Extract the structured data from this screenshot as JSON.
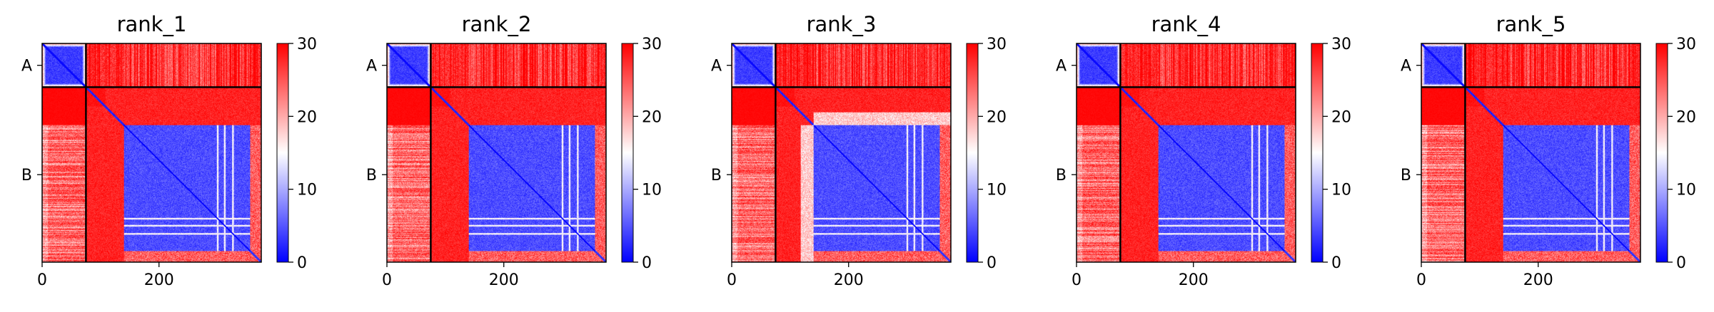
{
  "chart_data": [
    {
      "type": "heatmap",
      "title": "rank_1",
      "x_ticks": [
        0,
        200
      ],
      "y_ticks": [
        "A",
        "B"
      ],
      "colorbar_ticks": [
        0,
        10,
        20,
        30
      ],
      "color_range": [
        0,
        30
      ],
      "colormap": [
        "#0000ff",
        "#ffffff",
        "#ff0000"
      ],
      "n_residues": 375,
      "chain_break": 75,
      "variant": 1
    },
    {
      "type": "heatmap",
      "title": "rank_2",
      "x_ticks": [
        0,
        200
      ],
      "y_ticks": [
        "A",
        "B"
      ],
      "colorbar_ticks": [
        0,
        10,
        20,
        30
      ],
      "color_range": [
        0,
        30
      ],
      "colormap": [
        "#0000ff",
        "#ffffff",
        "#ff0000"
      ],
      "n_residues": 375,
      "chain_break": 75,
      "variant": 2
    },
    {
      "type": "heatmap",
      "title": "rank_3",
      "x_ticks": [
        0,
        200
      ],
      "y_ticks": [
        "A",
        "B"
      ],
      "colorbar_ticks": [
        0,
        10,
        20,
        30
      ],
      "color_range": [
        0,
        30
      ],
      "colormap": [
        "#0000ff",
        "#ffffff",
        "#ff0000"
      ],
      "n_residues": 375,
      "chain_break": 75,
      "variant": 3
    },
    {
      "type": "heatmap",
      "title": "rank_4",
      "x_ticks": [
        0,
        200
      ],
      "y_ticks": [
        "A",
        "B"
      ],
      "colorbar_ticks": [
        0,
        10,
        20,
        30
      ],
      "color_range": [
        0,
        30
      ],
      "colormap": [
        "#0000ff",
        "#ffffff",
        "#ff0000"
      ],
      "n_residues": 375,
      "chain_break": 75,
      "variant": 4
    },
    {
      "type": "heatmap",
      "title": "rank_5",
      "x_ticks": [
        0,
        200
      ],
      "y_ticks": [
        "A",
        "B"
      ],
      "colorbar_ticks": [
        0,
        10,
        20,
        30
      ],
      "color_range": [
        0,
        30
      ],
      "colormap": [
        "#0000ff",
        "#ffffff",
        "#ff0000"
      ],
      "n_residues": 375,
      "chain_break": 75,
      "variant": 5
    }
  ]
}
